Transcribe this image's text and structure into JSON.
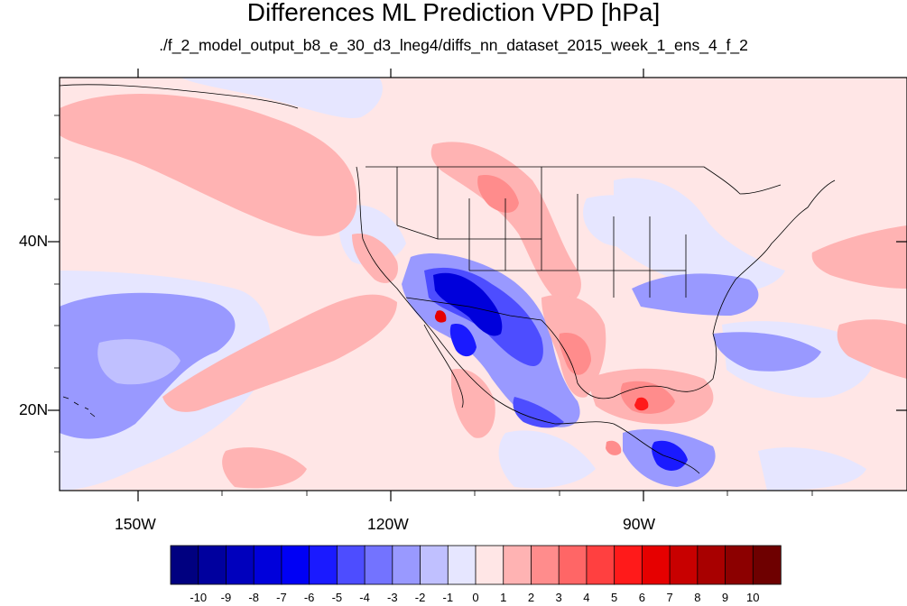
{
  "title": "Differences ML Prediction VPD [hPa]",
  "subtitle": "./f_2_model_output_b8_e_30_d3_lneg4/diffs_nn_dataset_2015_week_1_ens_4_f_2",
  "axes": {
    "lat_labels": [
      "40N",
      "20N"
    ],
    "lon_labels": [
      "150W",
      "120W",
      "90W"
    ]
  },
  "colorbar": {
    "labels": [
      "-10",
      "-9",
      "-8",
      "-7",
      "-6",
      "-5",
      "-4",
      "-3",
      "-2",
      "-1",
      "0",
      "1",
      "2",
      "3",
      "4",
      "5",
      "6",
      "7",
      "8",
      "9",
      "10"
    ],
    "colors": [
      "#000080",
      "#00009e",
      "#0000bd",
      "#0000db",
      "#0000f5",
      "#1a1aff",
      "#4d4dff",
      "#7373ff",
      "#9999ff",
      "#c0c0ff",
      "#e6e6ff",
      "#ffe6e6",
      "#ffb3b3",
      "#ff8c8c",
      "#ff6666",
      "#ff4040",
      "#ff1a1a",
      "#e60000",
      "#c80000",
      "#a80000",
      "#8c0000",
      "#6e0000"
    ]
  },
  "palette": {
    "background_light_pink": "#ffe6e6",
    "light_blue": "#e6e6ff",
    "blue": "#9999ff",
    "red": "#ff9a9a",
    "dark_blue": "#0000db",
    "dark_red": "#e60000"
  }
}
